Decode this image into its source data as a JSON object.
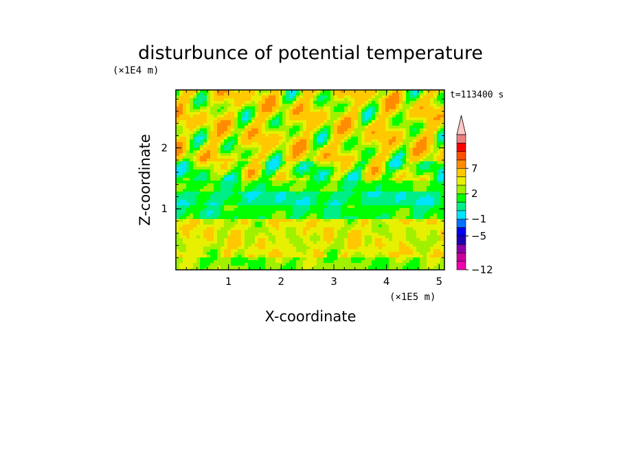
{
  "chart_data": {
    "type": "heatmap",
    "title": "disturbunce of potential temperature",
    "time_label": "t=113400 s",
    "xlabel": "X-coordinate",
    "ylabel": "Z-coordinate",
    "x_unit": "(×1E5 m)",
    "y_unit": "(×1E4 m)",
    "xlim": [
      0,
      5.1
    ],
    "ylim": [
      0,
      2.95
    ],
    "x_ticks": [
      {
        "value": 1,
        "label": "1"
      },
      {
        "value": 2,
        "label": "2"
      },
      {
        "value": 3,
        "label": "3"
      },
      {
        "value": 4,
        "label": "4"
      },
      {
        "value": 5,
        "label": "5"
      }
    ],
    "y_ticks": [
      {
        "value": 1,
        "label": "1"
      },
      {
        "value": 2,
        "label": "2"
      }
    ],
    "colorbar": {
      "levels": [
        "-12",
        "-10",
        "-8",
        "-6",
        "-5",
        "-3",
        "-1",
        "0",
        "1",
        "2",
        "3",
        "5",
        "7",
        "8",
        "10",
        "12"
      ],
      "labels": [
        {
          "level": "7",
          "label": "7"
        },
        {
          "level": "2",
          "label": "2"
        },
        {
          "level": "-1",
          "label": "−1"
        },
        {
          "level": "-5",
          "label": "−5"
        },
        {
          "level": "-12",
          "label": "−12"
        }
      ],
      "colors": [
        "#ee00aa",
        "#c8009c",
        "#8c00a8",
        "#1e00b4",
        "#0000ee",
        "#0070ff",
        "#00e4ff",
        "#00ee88",
        "#00ff00",
        "#a0f000",
        "#e6f000",
        "#ffc800",
        "#ff8c00",
        "#ff5000",
        "#ff0000",
        "#e88080",
        "#ffc8c8"
      ],
      "extend": "max"
    },
    "field_description_levels": [
      {
        "z_range": [
          0,
          0.2
        ],
        "dominant_level": "1"
      },
      {
        "z_range": [
          0.2,
          0.85
        ],
        "dominant_level": "2"
      },
      {
        "z_range": [
          0.85,
          1.3
        ],
        "dominant_level": "-1"
      },
      {
        "z_range": [
          1.3,
          1.8
        ],
        "dominant_level": "1"
      },
      {
        "z_range": [
          1.8,
          2.95
        ],
        "dominant_level": "3"
      }
    ]
  }
}
